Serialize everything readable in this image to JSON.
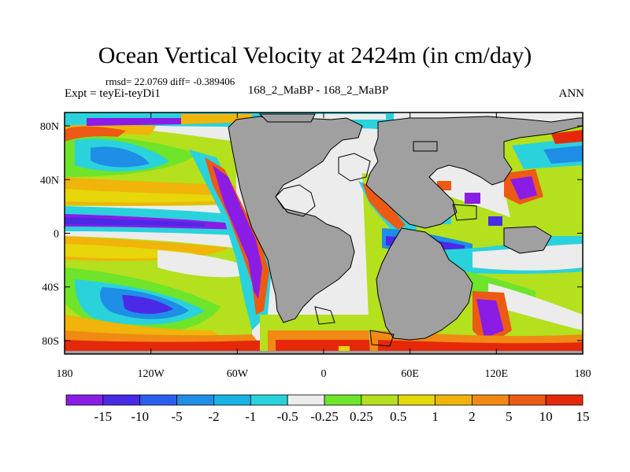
{
  "title": "Ocean Vertical Velocity at 2424m (in cm/day)",
  "stats_line": "rmsd= 22.0769 diff= -0.389406",
  "expt_label": "Expt = teyEi-teyDi1",
  "center_label": "168_2_MaBP - 168_2_MaBP",
  "season_label": "ANN",
  "x_ticks": [
    "180",
    "120W",
    "60W",
    "0",
    "60E",
    "120E",
    "180"
  ],
  "y_ticks": [
    "80N",
    "40N",
    "0",
    "40S",
    "80S"
  ],
  "colorbar": {
    "colors": [
      "#8a1ce6",
      "#4a2ae6",
      "#2a5ef0",
      "#1e8ee6",
      "#17b2e6",
      "#2ad2dc",
      "#ececec",
      "#6ee42a",
      "#b4e01e",
      "#e6d60a",
      "#f0b40a",
      "#f08a14",
      "#ec5a14",
      "#e6280a"
    ],
    "labels": [
      "-15",
      "-10",
      "-5",
      "-2",
      "-1",
      "-0.5",
      "-0.25",
      "0.25",
      "0.5",
      "1",
      "2",
      "5",
      "10",
      "15"
    ]
  },
  "map_colors": {
    "land": "#a0a0a0",
    "coast": "#000000"
  }
}
